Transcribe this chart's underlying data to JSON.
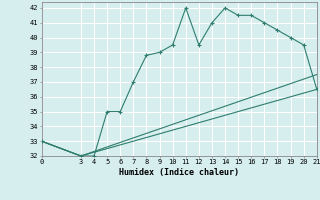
{
  "xlabel": "Humidex (Indice chaleur)",
  "ylabel": "",
  "bg_color": "#d6eeee",
  "grid_color": "#ffffff",
  "line_color": "#2e7d6e",
  "xlim": [
    0,
    21
  ],
  "ylim": [
    32,
    42.4
  ],
  "xticks": [
    0,
    3,
    4,
    5,
    6,
    7,
    8,
    9,
    10,
    11,
    12,
    13,
    14,
    15,
    16,
    17,
    18,
    19,
    20,
    21
  ],
  "yticks": [
    32,
    33,
    34,
    35,
    36,
    37,
    38,
    39,
    40,
    41,
    42
  ],
  "series": [
    {
      "x": [
        0,
        3,
        4,
        5,
        6,
        7,
        8,
        9,
        10,
        11,
        12,
        13,
        14,
        15,
        16,
        17,
        18,
        19,
        20,
        21
      ],
      "y": [
        33,
        32,
        32,
        35,
        35,
        37,
        38.8,
        39,
        39.5,
        42,
        39.5,
        41,
        42,
        41.5,
        41.5,
        41,
        40.5,
        40,
        39.5,
        36.5
      ]
    },
    {
      "x": [
        0,
        3,
        21
      ],
      "y": [
        33,
        32,
        36.5
      ]
    },
    {
      "x": [
        0,
        3,
        21
      ],
      "y": [
        33,
        32,
        37.5
      ]
    }
  ]
}
